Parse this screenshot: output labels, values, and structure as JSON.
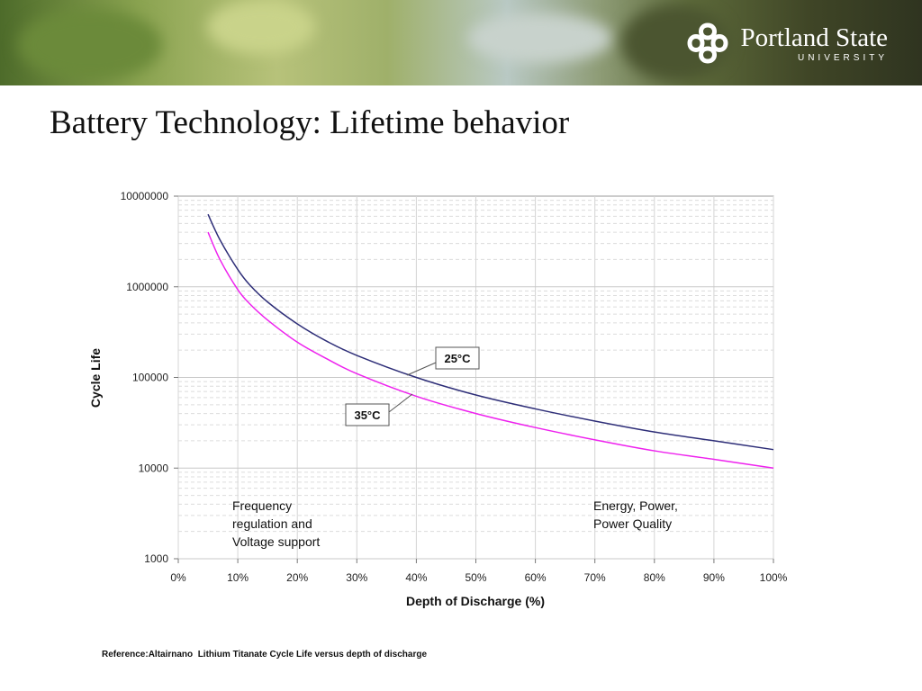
{
  "slide": {
    "title": "Battery Technology: Lifetime behavior",
    "reference": "Reference:Altairnano  Lithium Titanate Cycle Life versus depth of discharge"
  },
  "logo": {
    "name": "Portland State",
    "sub": "UNIVERSITY"
  },
  "annotations": {
    "left_note": [
      "Frequency",
      "regulation and",
      "Voltage support"
    ],
    "right_note": [
      "Energy, Power,",
      "Power Quality"
    ]
  },
  "chart_data": {
    "type": "line",
    "xlabel": "Depth of Discharge (%)",
    "ylabel": "Cycle Life",
    "x_scale": "linear",
    "y_scale": "log",
    "xlim": [
      0,
      100
    ],
    "ylim": [
      1000,
      10000000
    ],
    "x_ticks": [
      "0%",
      "10%",
      "20%",
      "30%",
      "40%",
      "50%",
      "60%",
      "70%",
      "80%",
      "90%",
      "100%"
    ],
    "y_ticks": [
      "1000",
      "10000",
      "100000",
      "1000000",
      "10000000"
    ],
    "grid": true,
    "series": [
      {
        "name": "25°C",
        "color": "#2e2e78",
        "x": [
          5,
          7,
          10,
          12,
          15,
          20,
          25,
          30,
          40,
          50,
          60,
          70,
          80,
          90,
          100
        ],
        "y": [
          6300000,
          3300000,
          1550000,
          1050000,
          680000,
          390000,
          250000,
          175000,
          100000,
          64000,
          45000,
          33000,
          25000,
          20000,
          16000
        ]
      },
      {
        "name": "35°C",
        "color": "#ee22ee",
        "x": [
          5,
          7,
          10,
          12,
          15,
          20,
          25,
          30,
          40,
          50,
          60,
          70,
          80,
          90,
          100
        ],
        "y": [
          4000000,
          2000000,
          930000,
          650000,
          430000,
          245000,
          160000,
          110000,
          62000,
          40000,
          28000,
          20500,
          15500,
          12500,
          10000
        ]
      }
    ]
  }
}
